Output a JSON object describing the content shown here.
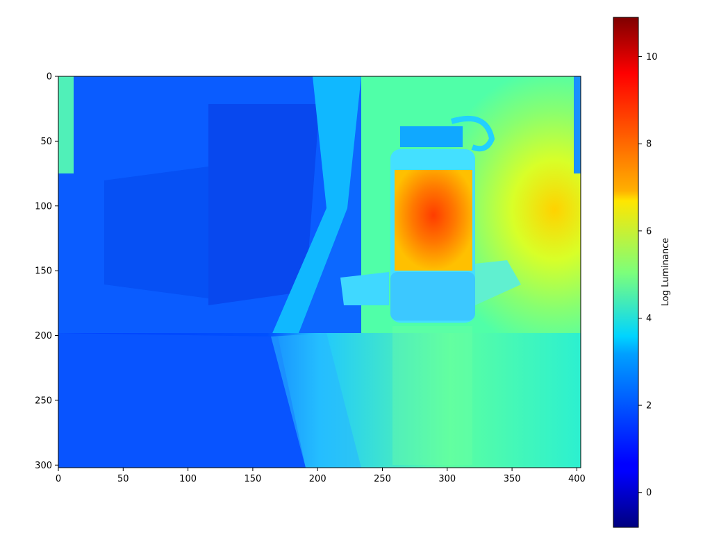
{
  "chart_data": {
    "type": "heatmap",
    "title": "",
    "xlabel": "",
    "ylabel": "",
    "xlim": [
      0,
      403
    ],
    "ylim": [
      302,
      0
    ],
    "x_ticks": [
      0,
      50,
      100,
      150,
      200,
      250,
      300,
      350,
      400
    ],
    "y_ticks": [
      0,
      50,
      100,
      150,
      200,
      250,
      300
    ],
    "grid": false,
    "colormap": "jet",
    "colorbar": {
      "label": "Log Luminance",
      "range": [
        -0.8,
        10.9
      ],
      "ticks": [
        0,
        2,
        4,
        6,
        8,
        10
      ]
    },
    "image_description_values": {
      "dark_region_left": 1.5,
      "background_wall_right": 4.5,
      "bright_spot_right": 6.5,
      "bottle_interior": 8.5,
      "bottle_base": 3.5,
      "table_surface": 4.0
    }
  }
}
